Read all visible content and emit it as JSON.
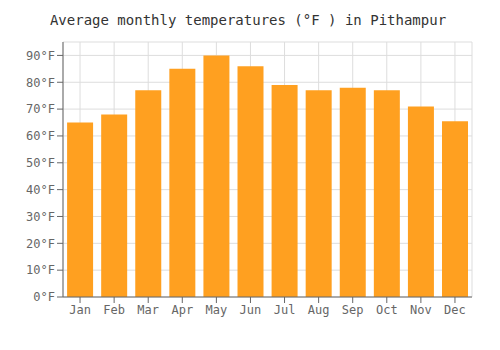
{
  "chart_data": {
    "type": "bar",
    "title": "Average monthly temperatures (°F ) in Pithampur",
    "categories": [
      "Jan",
      "Feb",
      "Mar",
      "Apr",
      "May",
      "Jun",
      "Jul",
      "Aug",
      "Sep",
      "Oct",
      "Nov",
      "Dec"
    ],
    "values": [
      65,
      68,
      77,
      85,
      90,
      86,
      79,
      77,
      78,
      77,
      71,
      65.5
    ],
    "color": "#FFA020",
    "ylim": [
      0,
      95
    ],
    "yticks": [
      {
        "value": 0,
        "label": "0°F"
      },
      {
        "value": 10,
        "label": "10°F"
      },
      {
        "value": 20,
        "label": "20°F"
      },
      {
        "value": 30,
        "label": "30°F"
      },
      {
        "value": 40,
        "label": "40°F"
      },
      {
        "value": 50,
        "label": "50°F"
      },
      {
        "value": 60,
        "label": "60°F"
      },
      {
        "value": 70,
        "label": "70°F"
      },
      {
        "value": 80,
        "label": "80°F"
      },
      {
        "value": 90,
        "label": "90°F"
      }
    ],
    "grid": true
  }
}
